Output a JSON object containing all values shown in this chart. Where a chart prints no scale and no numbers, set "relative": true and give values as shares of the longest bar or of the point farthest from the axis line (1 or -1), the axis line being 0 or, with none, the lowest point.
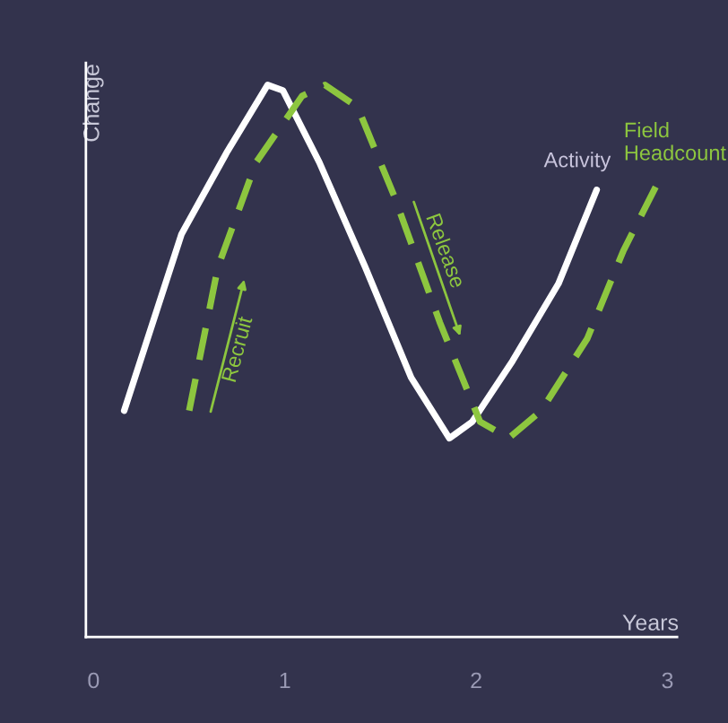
{
  "chart_data": {
    "type": "line",
    "relative": true,
    "xlabel": "Years",
    "ylabel": "Change",
    "xlim": [
      -0.04,
      3.05
    ],
    "xticks": [
      0,
      1,
      2,
      3
    ],
    "grid": false,
    "marker": "none",
    "annotations": [
      "Recruit",
      "Release"
    ],
    "series": [
      {
        "name": "Activity",
        "color": "#ffffff",
        "line_style": "solid",
        "x": [
          0.16,
          0.46,
          0.7,
          0.91,
          0.99,
          1.18,
          1.42,
          1.66,
          1.86,
          1.98,
          2.19,
          2.43,
          2.63
        ],
        "values": [
          0.41,
          0.73,
          0.88,
          1.0,
          0.99,
          0.86,
          0.67,
          0.47,
          0.36,
          0.39,
          0.5,
          0.64,
          0.81
        ]
      },
      {
        "name": "Field\nHeadcount",
        "color": "#8dc63f",
        "line_style": "dashed",
        "x": [
          0.5,
          0.65,
          0.85,
          1.09,
          1.21,
          1.38,
          1.57,
          1.81,
          2.02,
          2.17,
          2.34,
          2.58,
          2.77,
          2.96
        ],
        "values": [
          0.41,
          0.67,
          0.86,
          0.98,
          1.0,
          0.96,
          0.8,
          0.57,
          0.39,
          0.36,
          0.41,
          0.54,
          0.7,
          0.83
        ]
      }
    ]
  }
}
